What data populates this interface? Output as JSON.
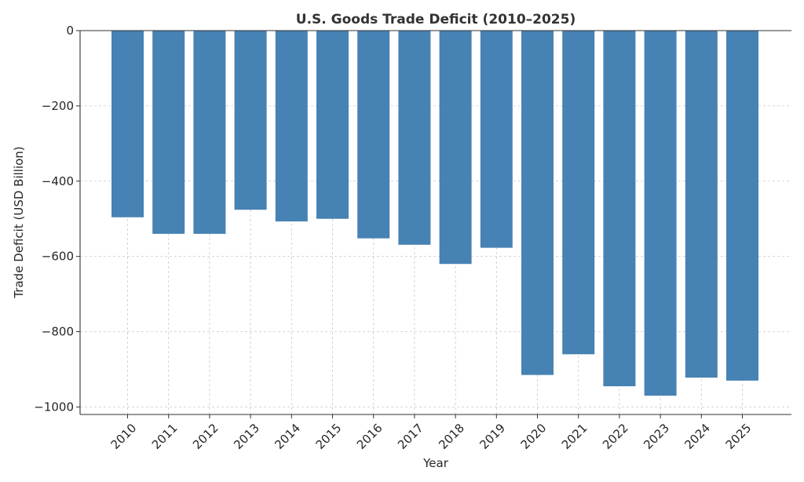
{
  "chart_data": {
    "type": "bar",
    "title": "U.S. Goods Trade Deficit (2010–2025)",
    "xlabel": "Year",
    "ylabel": "Trade Deficit (USD Billion)",
    "categories": [
      "2010",
      "2011",
      "2012",
      "2013",
      "2014",
      "2015",
      "2016",
      "2017",
      "2018",
      "2019",
      "2020",
      "2021",
      "2022",
      "2023",
      "2024",
      "2025"
    ],
    "values": [
      -496,
      -540,
      -540,
      -476,
      -507,
      -500,
      -552,
      -569,
      -620,
      -577,
      -915,
      -860,
      -945,
      -970,
      -922,
      -930
    ],
    "ylim": [
      -1020,
      0
    ],
    "yticks": [
      0,
      -200,
      -400,
      -600,
      -800,
      -1000
    ],
    "ytick_labels": [
      "0",
      "−200",
      "−400",
      "−600",
      "−800",
      "−1000"
    ],
    "bar_color": "#4682b4",
    "grid": true,
    "legend": "none"
  }
}
